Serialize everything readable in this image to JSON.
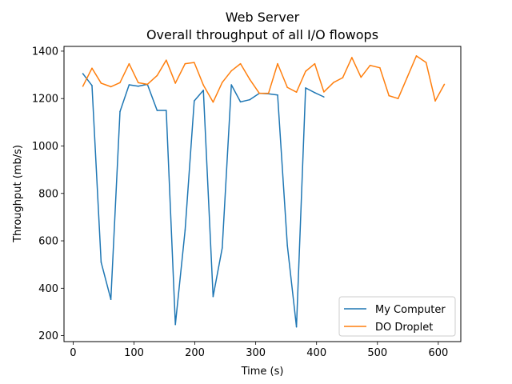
{
  "chart_data": {
    "type": "line",
    "title": "Web Server",
    "subtitle": "Overall throughput of all I/O flowops",
    "xlabel": "Time (s)",
    "ylabel": "Throughput (mb/s)",
    "xlim": [
      -15,
      637
    ],
    "ylim": [
      175,
      1420
    ],
    "xticks": [
      0,
      100,
      200,
      300,
      400,
      500,
      600
    ],
    "yticks": [
      200,
      400,
      600,
      800,
      1000,
      1200,
      1400
    ],
    "grid": false,
    "legend_position": "lower-right",
    "series": [
      {
        "name": "My Computer",
        "color": "#1f77b4",
        "x": [
          16,
          31,
          46,
          62,
          77,
          92,
          107,
          122,
          138,
          153,
          168,
          184,
          199,
          214,
          230,
          245,
          260,
          275,
          290,
          306,
          321,
          336,
          352,
          367,
          382,
          397,
          412
        ],
        "y": [
          1305,
          1255,
          510,
          353,
          1145,
          1258,
          1252,
          1260,
          1150,
          1150,
          247,
          645,
          1190,
          1235,
          365,
          570,
          1258,
          1186,
          1195,
          1222,
          1220,
          1215,
          580,
          237,
          1245,
          1225,
          1207
        ]
      },
      {
        "name": "DO Droplet",
        "color": "#ff7f0e",
        "x": [
          16,
          31,
          46,
          62,
          77,
          92,
          107,
          122,
          138,
          153,
          168,
          184,
          199,
          214,
          230,
          245,
          260,
          275,
          290,
          306,
          321,
          336,
          352,
          367,
          382,
          397,
          412,
          428,
          443,
          458,
          473,
          488,
          504,
          519,
          534,
          549,
          564,
          580,
          595,
          610
        ],
        "y": [
          1252,
          1328,
          1265,
          1250,
          1267,
          1347,
          1267,
          1260,
          1297,
          1362,
          1265,
          1347,
          1352,
          1257,
          1185,
          1268,
          1317,
          1347,
          1282,
          1222,
          1222,
          1347,
          1247,
          1227,
          1315,
          1347,
          1228,
          1268,
          1288,
          1373,
          1290,
          1340,
          1330,
          1212,
          1200,
          1290,
          1380,
          1352,
          1190,
          1260
        ]
      }
    ]
  }
}
